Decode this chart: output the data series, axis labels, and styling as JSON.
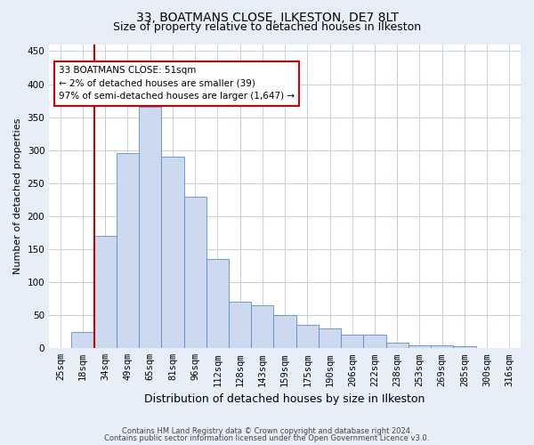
{
  "title": "33, BOATMANS CLOSE, ILKESTON, DE7 8LT",
  "subtitle": "Size of property relative to detached houses in Ilkeston",
  "xlabel": "Distribution of detached houses by size in Ilkeston",
  "ylabel": "Number of detached properties",
  "categories": [
    "25sqm",
    "18sqm",
    "34sqm",
    "49sqm",
    "65sqm",
    "81sqm",
    "96sqm",
    "112sqm",
    "128sqm",
    "143sqm",
    "159sqm",
    "175sqm",
    "190sqm",
    "206sqm",
    "222sqm",
    "238sqm",
    "253sqm",
    "269sqm",
    "285sqm",
    "300sqm",
    "316sqm"
  ],
  "bar_heights": [
    0,
    25,
    170,
    295,
    365,
    290,
    230,
    135,
    70,
    65,
    50,
    35,
    30,
    20,
    20,
    8,
    5,
    5,
    3,
    1,
    0
  ],
  "bar_color": "#ccd9ee",
  "bar_edge_color": "#5b8ccc",
  "vline_color": "#cc0000",
  "vline_x": 1.5,
  "annotation_text": "33 BOATMANS CLOSE: 51sqm\n← 2% of detached houses are smaller (39)\n97% of semi-detached houses are larger (1,647) →",
  "annotation_box_edge_color": "#cc0000",
  "ylim": [
    0,
    460
  ],
  "yticks": [
    0,
    50,
    100,
    150,
    200,
    250,
    300,
    350,
    400,
    450
  ],
  "footer_line1": "Contains HM Land Registry data © Crown copyright and database right 2024.",
  "footer_line2": "Contains public sector information licensed under the Open Government Licence v3.0.",
  "bg_color": "#e8eef8",
  "plot_bg_color": "#ffffff",
  "grid_color": "#c8d0e0",
  "title_fontsize": 10,
  "subtitle_fontsize": 9,
  "xlabel_fontsize": 9,
  "ylabel_fontsize": 8,
  "tick_fontsize": 7.5,
  "annotation_fontsize": 7.5
}
